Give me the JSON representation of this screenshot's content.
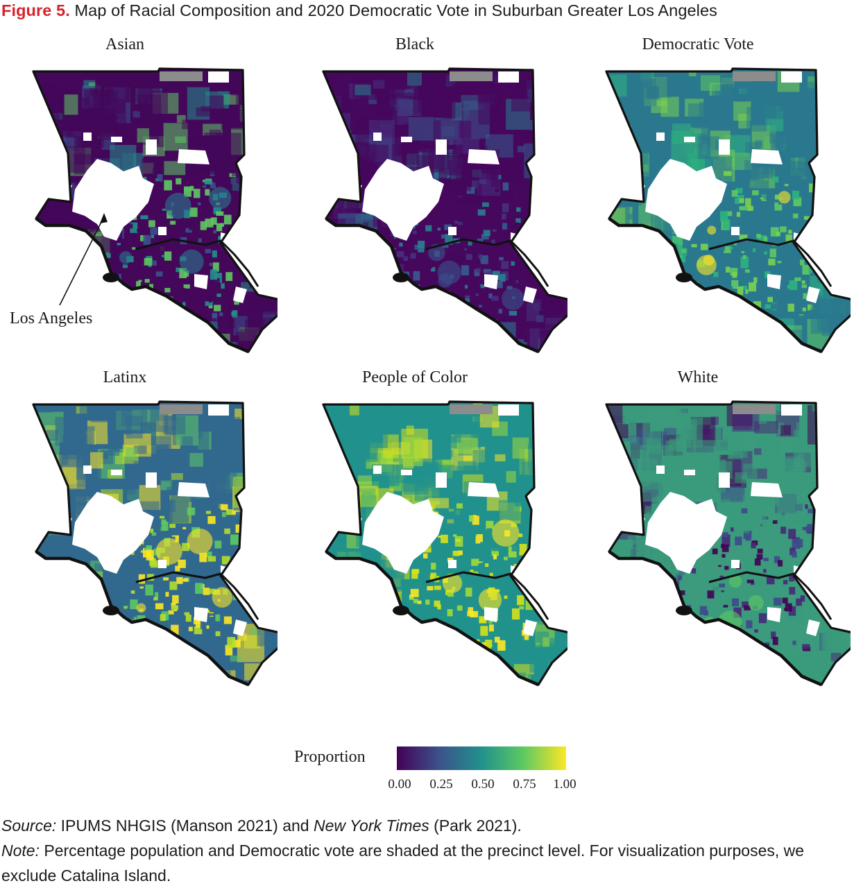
{
  "header": {
    "figure_label": "Figure 5.",
    "title": "Map of Racial Composition and 2020 Democratic Vote in Suburban Greater Los Angeles"
  },
  "panels": [
    {
      "title": "Asian",
      "base": "#44075a",
      "gradient": [
        "#3b528b",
        "#21918c",
        "#5ec962"
      ],
      "hot": "#2a788e"
    },
    {
      "title": "Black",
      "base": "#45085c",
      "gradient": [
        "#46327e",
        "#365c8d",
        "#277f8e"
      ],
      "hot": "#3b528b"
    },
    {
      "title": "Democratic Vote",
      "base": "#2a788e",
      "gradient": [
        "#5ec962",
        "#7ad151",
        "#2db27d"
      ],
      "hot": "#fde725"
    },
    {
      "title": "Latinx",
      "base": "#31688e",
      "gradient": [
        "#fde725",
        "#b5de2b",
        "#5ec962"
      ],
      "hot": "#fde725"
    },
    {
      "title": "People of Color",
      "base": "#21918c",
      "gradient": [
        "#fde725",
        "#d8e219",
        "#a0da39"
      ],
      "hot": "#fde725"
    },
    {
      "title": "White",
      "base": "#3b9b7c",
      "gradient": [
        "#482878",
        "#3e4a89",
        "#440154"
      ],
      "hot": "#5ec962"
    }
  ],
  "annotation": {
    "label": "Los Angeles"
  },
  "legend": {
    "title": "Proportion",
    "ticks": [
      "0.00",
      "0.25",
      "0.50",
      "0.75",
      "1.00"
    ],
    "colors": [
      "#440154",
      "#3b528b",
      "#21918c",
      "#5ec962",
      "#fde725"
    ]
  },
  "footer": {
    "source_label": "Source:",
    "source_text_1": " IPUMS NHGIS (Manson 2021) and ",
    "source_italic": "New York Times",
    "source_text_2": " (Park 2021).",
    "note_label": "Note:",
    "note_text": " Percentage population and Democratic vote are shaded at the precinct level. For visualization purposes, we exclude Catalina Island."
  }
}
